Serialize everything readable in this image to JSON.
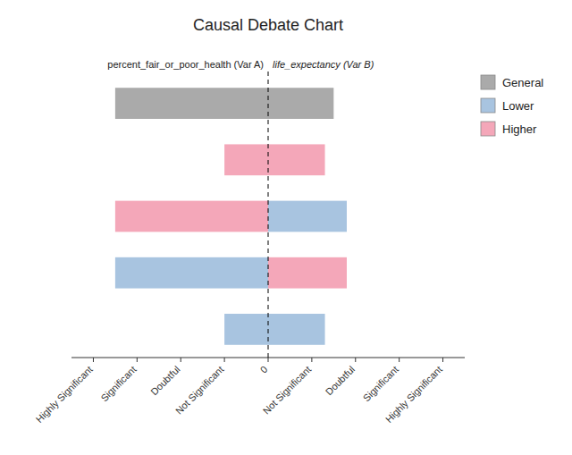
{
  "chart_data": {
    "type": "bar",
    "orientation": "horizontal",
    "title": "Causal Debate Chart",
    "annotations": [
      "percent_fair_or_poor_health (Var A)",
      "life_expectancy (Var B)"
    ],
    "categories": [
      null,
      null,
      null,
      null,
      null
    ],
    "series": [
      {
        "name": "General",
        "color": "#aaaaaa",
        "start": [
          -3.5,
          null,
          null,
          null,
          null
        ],
        "values": [
          1.5,
          null,
          null,
          null,
          null
        ]
      },
      {
        "name": "Lower",
        "color": "#a8c4e0",
        "start": [
          null,
          null,
          0.0,
          -3.5,
          -1.0
        ],
        "values": [
          null,
          null,
          1.8,
          0.0,
          1.3
        ]
      },
      {
        "name": "Higher",
        "color": "#f4a7b9",
        "start": [
          null,
          -1.0,
          -3.5,
          0.0,
          null
        ],
        "values": [
          null,
          1.3,
          0.0,
          1.8,
          null
        ]
      }
    ],
    "xlim": [
      -4.5,
      4.5
    ],
    "xticks": [
      {
        "value": -4,
        "label": "Highly Significant"
      },
      {
        "value": -3,
        "label": "Significant"
      },
      {
        "value": -2,
        "label": "Doubtful"
      },
      {
        "value": -1,
        "label": "Not Significant"
      },
      0,
      {
        "value": 1,
        "label": "Not Significant"
      },
      {
        "value": 2,
        "label": "Doubtful"
      },
      {
        "value": 3,
        "label": "Significant"
      },
      {
        "value": 4,
        "label": "Highly Significant"
      }
    ],
    "grid": false,
    "legend": "right"
  }
}
